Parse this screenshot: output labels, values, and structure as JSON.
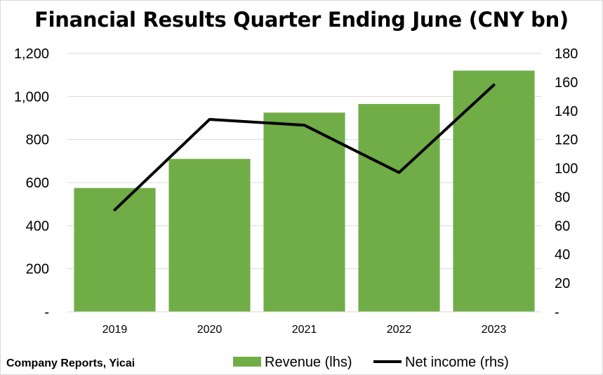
{
  "title": "Financial Results Quarter Ending June (CNY bn)",
  "source": "Company Reports, Yicai",
  "colors": {
    "bar": "#70ad47",
    "line": "#000000",
    "grid": "#d9d9d9"
  },
  "chart_data": {
    "type": "bar",
    "title": "Financial Results Quarter Ending June (CNY bn)",
    "categories": [
      "2019",
      "2020",
      "2021",
      "2022",
      "2023"
    ],
    "series": [
      {
        "name": "Revenue (lhs)",
        "type": "bar",
        "axis": "left",
        "values": [
          575,
          710,
          925,
          965,
          1120
        ]
      },
      {
        "name": "Net income (rhs)",
        "type": "line",
        "axis": "right",
        "values": [
          71,
          134,
          130,
          97,
          158
        ]
      }
    ],
    "y_left": {
      "ylim": [
        0,
        1200
      ],
      "ticks": [
        "-",
        "200",
        "400",
        "600",
        "800",
        "1,000",
        "1,200"
      ]
    },
    "y_right": {
      "ylim": [
        0,
        180
      ],
      "ticks": [
        "-",
        "20",
        "40",
        "60",
        "80",
        "100",
        "120",
        "140",
        "160",
        "180"
      ]
    },
    "grid": true,
    "legend": "bottom"
  }
}
